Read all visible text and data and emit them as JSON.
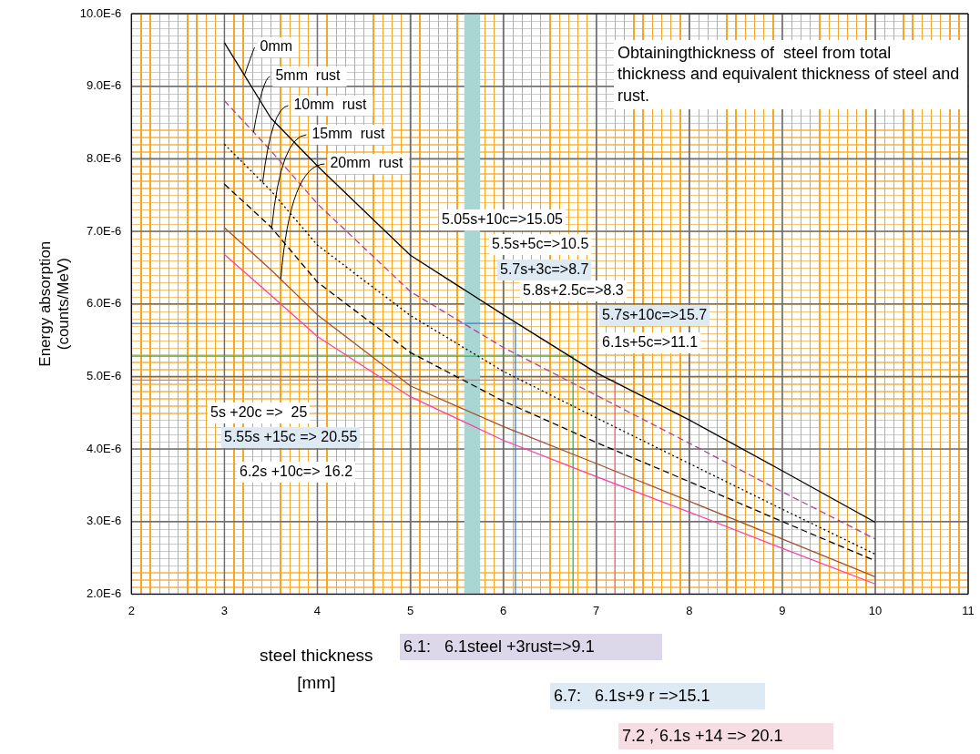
{
  "chart_data": {
    "type": "line",
    "xlabel": "steel thickness\n[mm]",
    "ylabel": "Energy absorption\n(counts/MeV)",
    "x": [
      3,
      3.5,
      4,
      5,
      6,
      7,
      8,
      9,
      10
    ],
    "series": [
      {
        "name": "0mm",
        "color": "#000000",
        "line_style": "solid",
        "values": [
          9.6e-06,
          8.56e-06,
          7.9e-06,
          6.67e-06,
          5.85e-06,
          5.05e-06,
          4.4e-06,
          3.7e-06,
          2.99e-06
        ]
      },
      {
        "name": "5mm  rust",
        "color": "#b03c9e",
        "line_style": "dashed",
        "values": [
          8.8e-06,
          8.11e-06,
          7.38e-06,
          6.17e-06,
          5.4e-06,
          4.74e-06,
          4.08e-06,
          3.41e-06,
          2.76e-06
        ]
      },
      {
        "name": "10mm  rust",
        "color": "#000000",
        "line_style": "dotted",
        "values": [
          8.2e-06,
          7.56e-06,
          6.81e-06,
          5.84e-06,
          5.07e-06,
          4.43e-06,
          3.8e-06,
          3.17e-06,
          2.55e-06
        ]
      },
      {
        "name": "15mm  rust",
        "color": "#000000",
        "line_style": "dashed",
        "values": [
          7.65e-06,
          7.06e-06,
          6.3e-06,
          5.33e-06,
          4.66e-06,
          4.09e-06,
          3.55e-06,
          3e-06,
          2.46e-06
        ]
      },
      {
        "name": "20mm  rust",
        "color": "#a0502d",
        "line_style": "solid",
        "values": [
          7.05e-06,
          6.47e-06,
          5.85e-06,
          4.87e-06,
          4.31e-06,
          3.8e-06,
          3.28e-06,
          2.76e-06,
          2.24e-06
        ]
      },
      {
        "color": "#ff3fa0",
        "line_style": "solid",
        "values": [
          6.68e-06,
          6.12e-06,
          5.55e-06,
          4.72e-06,
          4.12e-06,
          3.62e-06,
          3.13e-06,
          2.63e-06,
          2.14e-06
        ]
      },
      {
        "color": "#3a7fd5",
        "line_style": "solid",
        "x": [
          2,
          6.13,
          6.13
        ],
        "values": [
          5.73e-06,
          5.73e-06,
          2e-06
        ]
      },
      {
        "color": "#2fb344",
        "line_style": "solid",
        "x": [
          2,
          6.75,
          6.75
        ],
        "values": [
          5.28e-06,
          5.28e-06,
          2e-06
        ]
      },
      {
        "color": "#f07070",
        "line_style": "solid",
        "x": [
          2,
          7.2,
          7.2
        ],
        "values": [
          4.95e-06,
          4.95e-06,
          2e-06
        ]
      }
    ],
    "bands": [
      {
        "axis": "x",
        "from": 5.58,
        "to": 5.75,
        "color": "#a9d5d3"
      }
    ],
    "xlim": [
      2,
      11
    ],
    "xticks": [
      2,
      3,
      4,
      5,
      6,
      7,
      8,
      9,
      10,
      11
    ],
    "ylim": [
      2e-06,
      1e-05
    ],
    "yticks": [
      {
        "value": 2e-06,
        "label": "2.0E-6"
      },
      {
        "value": 3e-06,
        "label": "3.0E-6"
      },
      {
        "value": 4e-06,
        "label": "4.0E-6"
      },
      {
        "value": 5e-06,
        "label": "5.0E-6"
      },
      {
        "value": 6e-06,
        "label": "6.0E-6"
      },
      {
        "value": 7e-06,
        "label": "7.0E-6"
      },
      {
        "value": 8e-06,
        "label": "8.0E-6"
      },
      {
        "value": 9e-06,
        "label": "9.0E-6"
      },
      {
        "value": 1e-05,
        "label": "10.0E-6"
      }
    ],
    "grid": true,
    "marker": "none",
    "annotations": [
      "Obtainingthickness of  steel from total thickness and equivalent thickness of steel and rust.",
      "6.1:   6.1steel +3rust=>9.1",
      "6.7:   6.1s+9 r =>15.1",
      "7.2 ,´6.1s +14 => 20.1",
      "5.05s+10c=>15.05",
      "5.5s+5c=>10.5",
      "5.7s+3c=>8.7",
      "5.8s+2.5c=>8.3",
      "5.7s+10c=>15.7",
      "6.1s+5c=>11.1",
      "5s +20c =>  25",
      "5.55s +15c => 20.55",
      "6.2s +10c=> 16.2"
    ]
  }
}
